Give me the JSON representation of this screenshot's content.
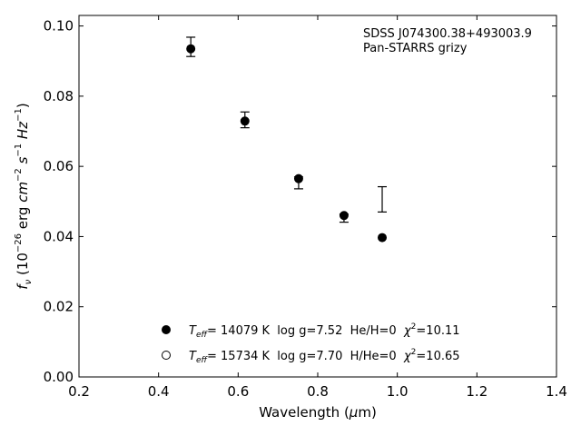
{
  "chart_data": {
    "type": "scatter",
    "xlabel_prefix": "Wavelength (",
    "xlabel_mu": "μ",
    "xlabel_suffix": "m)",
    "xlim": [
      0.2,
      1.4
    ],
    "ylim": [
      0.0,
      0.103
    ],
    "xticks": [
      0.2,
      0.4,
      0.6,
      0.8,
      1.0,
      1.2,
      1.4
    ],
    "xtick_labels": [
      "0.2",
      "0.4",
      "0.6",
      "0.8",
      "1.0",
      "1.2",
      "1.4"
    ],
    "yticks": [
      0.0,
      0.02,
      0.04,
      0.06,
      0.08,
      0.1
    ],
    "ytick_labels": [
      "0.00",
      "0.02",
      "0.04",
      "0.06",
      "0.08",
      "0.10"
    ],
    "annotations": [
      "SDSS J074300.38+493003.9",
      "Pan-STARRS grizy"
    ],
    "observed": [
      {
        "x": 0.481,
        "y": 0.094,
        "lo": 0.0913,
        "hi": 0.0968
      },
      {
        "x": 0.617,
        "y": 0.0733,
        "lo": 0.071,
        "hi": 0.0755
      },
      {
        "x": 0.752,
        "y": 0.056,
        "lo": 0.0536,
        "hi": 0.057
      },
      {
        "x": 0.866,
        "y": 0.0456,
        "lo": 0.0441,
        "hi": 0.0464
      },
      {
        "x": 0.962,
        "y": 0.0506,
        "lo": 0.047,
        "hi": 0.0542
      }
    ],
    "series": [
      {
        "marker": "filled-circle",
        "x": [
          0.481,
          0.617,
          0.752,
          0.866,
          0.962
        ],
        "y": [
          0.0935,
          0.0729,
          0.0565,
          0.046,
          0.0397
        ]
      },
      {
        "marker": "open-circle",
        "x": [],
        "y": []
      }
    ],
    "legend": [
      {
        "t": "T",
        "sub": "eff",
        "rest": "= 14079 K  log g=7.52  He/H=0  ",
        "chi": "χ",
        "sup": "2",
        "val": "=10.11",
        "marker": "filled"
      },
      {
        "t": "T",
        "sub": "eff",
        "rest": "= 15734 K  log g=7.70  H/He=0  ",
        "chi": "χ",
        "sup": "2",
        "val": "=10.65",
        "marker": "open"
      }
    ],
    "ylabel_parts": {
      "f": "f",
      "nu": "ν",
      "open": " (10",
      "exp1": "−26",
      "erg": " erg ",
      "cm": "cm",
      "exp2": "−2",
      "s": "s",
      "exp3": "−1",
      "hz": "Hz",
      "exp4": "−1",
      "close": ")"
    },
    "colors": {
      "ink": "#000000",
      "background": "#ffffff"
    },
    "legend_location": "lower-center",
    "grid": false
  }
}
